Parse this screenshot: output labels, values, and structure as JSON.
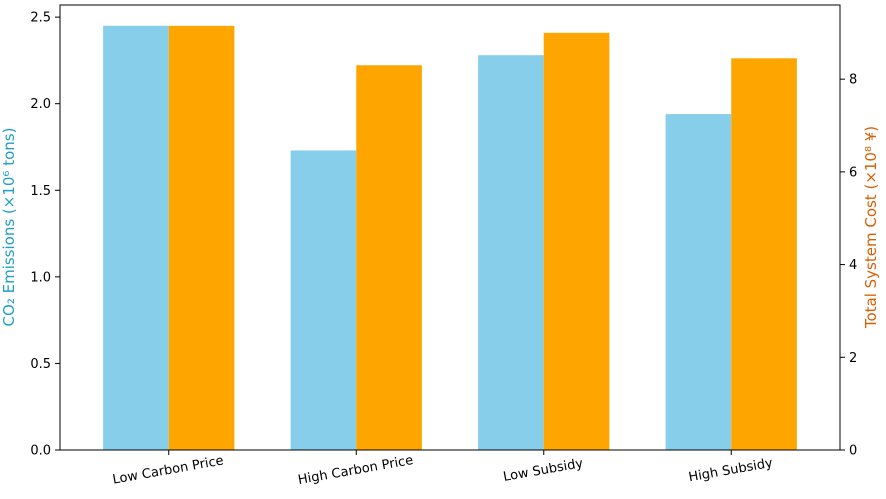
{
  "chart_data": {
    "type": "bar",
    "categories": [
      "Low Carbon Price",
      "High Carbon Price",
      "Low Subsidy",
      "High Subsidy"
    ],
    "series": [
      {
        "axis": "left",
        "color": "#87CEEB",
        "values": [
          2.45,
          1.73,
          2.28,
          1.94
        ]
      },
      {
        "axis": "right",
        "color": "#FFA500",
        "values": [
          9.15,
          8.3,
          9.0,
          8.45
        ]
      }
    ],
    "ylabel_left": "CO₂ Emissions (×10⁶ tons)",
    "ylabel_left_color": "#1f9fc7",
    "ylabel_right": "Total System Cost (×10⁸ ¥)",
    "ylabel_right_color": "#d95f02",
    "ylim_left": [
      0,
      2.57
    ],
    "ylim_right": [
      0,
      9.6
    ],
    "yticks_left": [
      0.0,
      0.5,
      1.0,
      1.5,
      2.0,
      2.5
    ],
    "yticks_right": [
      0,
      2,
      4,
      6,
      8
    ],
    "grid": false,
    "legend": "none"
  }
}
